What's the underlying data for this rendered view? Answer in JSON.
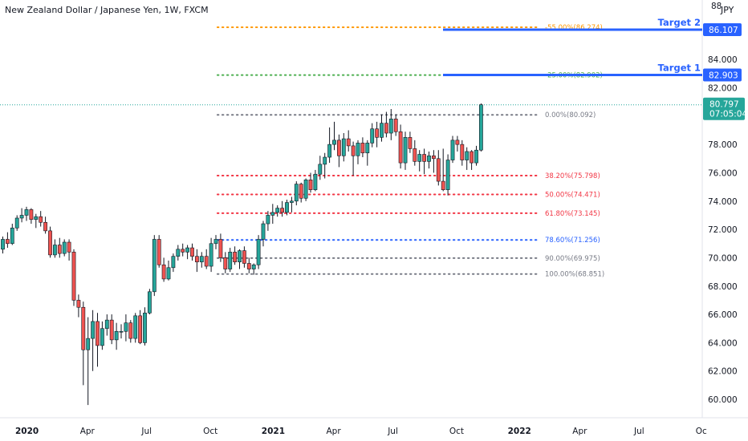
{
  "header": {
    "title": "New Zealand Dollar / Japanese Yen, 1W, FXCM",
    "currency": "JPY"
  },
  "colors": {
    "up": "#26a69a",
    "down": "#ef5350",
    "target": "#2962ff",
    "fib_orange": "#ff9800",
    "fib_green": "#4caf50",
    "fib_gray": "#787b86",
    "fib_red": "#f23645",
    "fib_blue": "#2962ff",
    "price_badge": "#26a69a"
  },
  "chart_data": {
    "type": "candlestick",
    "title": "New Zealand Dollar / Japanese Yen, 1W, FXCM",
    "ylim": [
      58.7,
      88.2
    ],
    "y_ticks": [
      60,
      62,
      64,
      66,
      68,
      70,
      72,
      74,
      76,
      78,
      80,
      82,
      84
    ],
    "y_tick_labels": [
      "60.000",
      "62.000",
      "64.000",
      "66.000",
      "68.000",
      "70.000",
      "72.000",
      "74.000",
      "76.000",
      "78.000",
      "",
      "82.000",
      "84.000"
    ],
    "x_ticks": [
      {
        "label": "2020",
        "week": 5,
        "bold": true
      },
      {
        "label": "Apr",
        "week": 18
      },
      {
        "label": "Jul",
        "week": 31
      },
      {
        "label": "Oct",
        "week": 44
      },
      {
        "label": "2021",
        "week": 57,
        "bold": true
      },
      {
        "label": "Apr",
        "week": 70
      },
      {
        "label": "Jul",
        "week": 83
      },
      {
        "label": "Oct",
        "week": 96
      },
      {
        "label": "2022",
        "week": 109,
        "bold": true
      },
      {
        "label": "Apr",
        "week": 122
      },
      {
        "label": "Jul",
        "week": 135
      },
      {
        "label": "Oc",
        "week": 148
      }
    ],
    "candles": [
      [
        70.6,
        71.5,
        70.3,
        71.3
      ],
      [
        71.3,
        71.8,
        70.7,
        71.0
      ],
      [
        71.0,
        72.4,
        70.9,
        72.1
      ],
      [
        72.1,
        73.0,
        71.9,
        72.8
      ],
      [
        72.8,
        73.5,
        72.5,
        73.0
      ],
      [
        73.0,
        73.6,
        72.6,
        73.4
      ],
      [
        73.4,
        73.5,
        72.4,
        72.7
      ],
      [
        72.7,
        73.1,
        72.1,
        72.9
      ],
      [
        72.9,
        73.3,
        72.2,
        72.5
      ],
      [
        72.5,
        72.9,
        71.7,
        71.9
      ],
      [
        71.9,
        72.2,
        70.0,
        70.2
      ],
      [
        70.2,
        71.3,
        70.0,
        70.9
      ],
      [
        70.9,
        71.4,
        70.0,
        70.3
      ],
      [
        70.3,
        71.3,
        70.1,
        71.1
      ],
      [
        71.1,
        71.3,
        69.8,
        70.4
      ],
      [
        70.4,
        70.6,
        66.6,
        67.0
      ],
      [
        67.0,
        67.4,
        65.8,
        66.5
      ],
      [
        66.5,
        66.9,
        61.0,
        63.5
      ],
      [
        63.5,
        65.8,
        59.6,
        64.3
      ],
      [
        64.3,
        66.3,
        62.0,
        65.5
      ],
      [
        65.5,
        66.1,
        62.3,
        63.8
      ],
      [
        63.8,
        65.5,
        63.5,
        65.0
      ],
      [
        65.0,
        66.0,
        64.5,
        65.6
      ],
      [
        65.6,
        66.0,
        63.9,
        64.2
      ],
      [
        64.2,
        65.4,
        63.5,
        64.8
      ],
      [
        64.8,
        65.3,
        64.3,
        64.8
      ],
      [
        64.8,
        66.0,
        64.1,
        65.4
      ],
      [
        65.4,
        65.6,
        64.0,
        64.3
      ],
      [
        64.3,
        66.1,
        64.0,
        65.9
      ],
      [
        65.9,
        66.3,
        63.9,
        64.0
      ],
      [
        64.0,
        66.5,
        63.8,
        66.1
      ],
      [
        66.1,
        67.8,
        66.0,
        67.6
      ],
      [
        67.6,
        71.6,
        67.3,
        71.3
      ],
      [
        71.3,
        71.6,
        69.3,
        69.5
      ],
      [
        69.5,
        70.0,
        68.3,
        68.5
      ],
      [
        68.5,
        69.8,
        68.4,
        69.3
      ],
      [
        69.3,
        70.3,
        69.0,
        70.1
      ],
      [
        70.1,
        70.9,
        69.8,
        70.6
      ],
      [
        70.6,
        71.0,
        70.1,
        70.4
      ],
      [
        70.4,
        70.9,
        69.9,
        70.7
      ],
      [
        70.7,
        71.0,
        69.8,
        70.1
      ],
      [
        70.1,
        70.6,
        69.0,
        69.7
      ],
      [
        69.7,
        70.4,
        69.3,
        70.1
      ],
      [
        70.1,
        70.6,
        69.2,
        69.4
      ],
      [
        69.4,
        71.4,
        69.0,
        71.0
      ],
      [
        71.0,
        71.6,
        70.6,
        71.3
      ],
      [
        71.3,
        71.7,
        69.7,
        70.0
      ],
      [
        70.0,
        70.4,
        68.9,
        69.2
      ],
      [
        69.2,
        70.7,
        69.0,
        70.4
      ],
      [
        70.4,
        70.8,
        69.5,
        69.7
      ],
      [
        69.7,
        70.6,
        69.2,
        70.5
      ],
      [
        70.5,
        70.8,
        69.3,
        69.6
      ],
      [
        69.6,
        70.0,
        68.9,
        69.2
      ],
      [
        69.2,
        69.6,
        68.8,
        69.5
      ],
      [
        69.5,
        71.6,
        69.2,
        71.3
      ],
      [
        71.3,
        72.6,
        70.8,
        72.4
      ],
      [
        72.4,
        73.3,
        71.9,
        73.0
      ],
      [
        73.0,
        73.8,
        72.4,
        73.2
      ],
      [
        73.2,
        73.7,
        72.9,
        73.5
      ],
      [
        73.5,
        74.0,
        72.9,
        73.2
      ],
      [
        73.2,
        74.1,
        73.0,
        73.9
      ],
      [
        73.9,
        74.3,
        73.2,
        74.0
      ],
      [
        74.0,
        75.4,
        73.7,
        75.2
      ],
      [
        75.2,
        75.3,
        73.9,
        74.2
      ],
      [
        74.2,
        75.6,
        74.0,
        75.5
      ],
      [
        75.5,
        76.0,
        74.6,
        74.8
      ],
      [
        74.8,
        76.2,
        74.7,
        75.9
      ],
      [
        75.9,
        77.2,
        75.5,
        76.6
      ],
      [
        76.6,
        77.4,
        75.6,
        77.1
      ],
      [
        77.1,
        79.2,
        76.7,
        78.0
      ],
      [
        78.0,
        79.6,
        77.6,
        78.3
      ],
      [
        78.3,
        78.7,
        76.4,
        77.2
      ],
      [
        77.2,
        78.8,
        76.8,
        78.4
      ],
      [
        78.4,
        79.0,
        77.5,
        77.9
      ],
      [
        77.9,
        78.2,
        75.8,
        77.2
      ],
      [
        77.2,
        78.3,
        76.6,
        78.1
      ],
      [
        78.1,
        78.5,
        77.1,
        77.4
      ],
      [
        77.4,
        78.3,
        76.5,
        78.1
      ],
      [
        78.1,
        79.5,
        77.8,
        79.1
      ],
      [
        79.1,
        79.6,
        77.8,
        78.5
      ],
      [
        78.5,
        80.1,
        78.2,
        79.5
      ],
      [
        79.5,
        80.3,
        78.5,
        78.8
      ],
      [
        78.8,
        80.5,
        78.3,
        79.8
      ],
      [
        79.8,
        80.1,
        78.6,
        78.9
      ],
      [
        78.9,
        79.4,
        76.3,
        76.7
      ],
      [
        76.7,
        78.9,
        76.2,
        78.5
      ],
      [
        78.5,
        78.9,
        77.4,
        77.7
      ],
      [
        77.7,
        78.3,
        76.5,
        76.8
      ],
      [
        76.8,
        77.6,
        76.1,
        77.3
      ],
      [
        77.3,
        77.7,
        75.9,
        76.8
      ],
      [
        76.8,
        77.5,
        76.3,
        77.2
      ],
      [
        77.2,
        77.6,
        76.0,
        77.0
      ],
      [
        77.0,
        77.6,
        75.1,
        75.4
      ],
      [
        75.4,
        77.7,
        74.7,
        74.8
      ],
      [
        74.8,
        77.3,
        74.4,
        76.9
      ],
      [
        76.9,
        78.6,
        76.7,
        78.3
      ],
      [
        78.3,
        78.6,
        77.5,
        78.0
      ],
      [
        78.0,
        78.3,
        76.5,
        76.9
      ],
      [
        76.9,
        77.8,
        76.2,
        77.5
      ],
      [
        77.5,
        77.6,
        76.2,
        76.7
      ],
      [
        76.7,
        77.9,
        76.5,
        77.6
      ],
      [
        77.6,
        80.9,
        77.5,
        80.8
      ]
    ],
    "fib_levels": [
      {
        "label": "-55.00%(86.274)",
        "value": 86.274,
        "color": "#ff9800"
      },
      {
        "label": "-25.00%(82.902)",
        "value": 82.902,
        "color": "#4caf50"
      },
      {
        "label": "0.00%(80.092)",
        "value": 80.092,
        "color": "#787b86"
      },
      {
        "label": "38.20%(75.798)",
        "value": 75.798,
        "color": "#f23645"
      },
      {
        "label": "50.00%(74.471)",
        "value": 74.471,
        "color": "#f23645"
      },
      {
        "label": "61.80%(73.145)",
        "value": 73.145,
        "color": "#f23645"
      },
      {
        "label": "78.60%(71.256)",
        "value": 71.256,
        "color": "#2962ff"
      },
      {
        "label": "90.00%(69.975)",
        "value": 69.975,
        "color": "#787b86"
      },
      {
        "label": "100.00%(68.851)",
        "value": 68.851,
        "color": "#787b86"
      }
    ],
    "targets": [
      {
        "label": "Target 2",
        "value": 86.107,
        "price_label": "86.107"
      },
      {
        "label": "Target 1",
        "value": 82.903,
        "price_label": "82.903"
      }
    ],
    "last_price": {
      "value": 80.797,
      "label": "80.797",
      "countdown": "07:05:04"
    }
  }
}
